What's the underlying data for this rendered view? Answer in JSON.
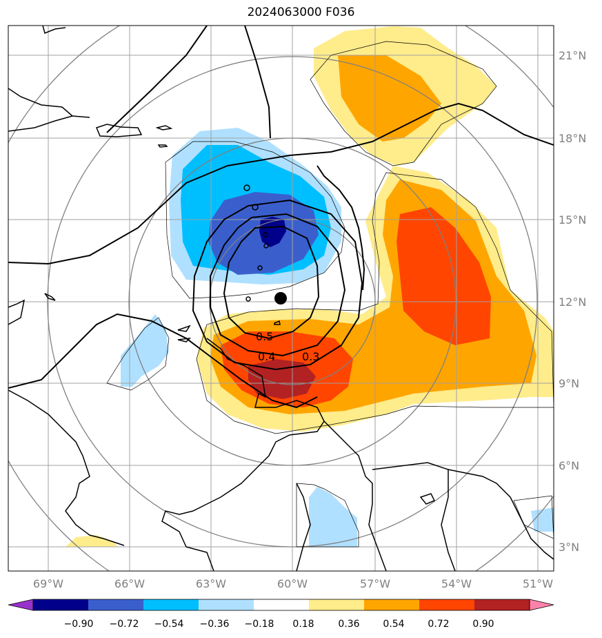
{
  "title": "2024063000 F036",
  "chart_data": {
    "type": "contour-map",
    "title": "2024063000 F036",
    "lon_ticks": [
      "69°W",
      "66°W",
      "63°W",
      "60°W",
      "57°W",
      "54°W",
      "51°W"
    ],
    "lat_ticks": [
      "21°N",
      "18°N",
      "15°N",
      "12°N",
      "9°N",
      "6°N",
      "3°N"
    ],
    "colorbar_levels": [
      "−0.90",
      "−0.72",
      "−0.54",
      "−0.36",
      "−0.18",
      "0.18",
      "0.36",
      "0.54",
      "0.72",
      "0.90"
    ],
    "colorbar_colors": [
      "#9932cc",
      "#00008b",
      "#3a5fcd",
      "#00bfff",
      "#b0e0ff",
      "#ffffff",
      "#ffec8b",
      "#ffa500",
      "#ff4500",
      "#b22222",
      "#ff82ab"
    ],
    "contour_labels": [
      "0.5",
      "0.4",
      "0.3"
    ],
    "center_marker": {
      "lon": -60.4,
      "lat": 12.1
    }
  }
}
